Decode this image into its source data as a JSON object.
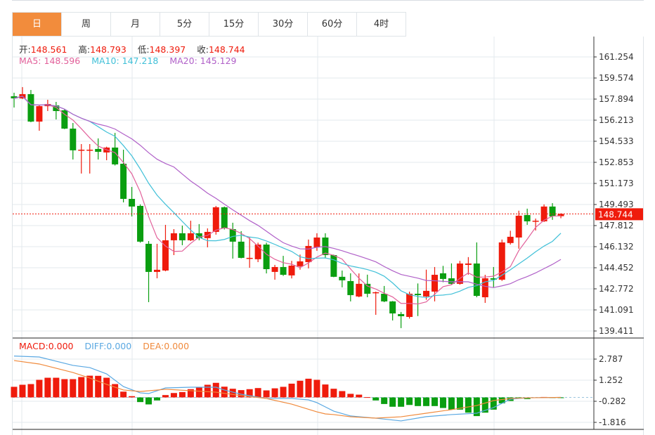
{
  "tabs": [
    {
      "label": "日",
      "active": true
    },
    {
      "label": "周"
    },
    {
      "label": "月"
    },
    {
      "label": "5分"
    },
    {
      "label": "15分"
    },
    {
      "label": "30分"
    },
    {
      "label": "60分"
    },
    {
      "label": "4时"
    }
  ],
  "ohlc_legend": {
    "open_label": "开:",
    "open": "148.561",
    "high_label": "高:",
    "high": "148.793",
    "low_label": "低:",
    "low": "148.397",
    "close_label": "收:",
    "close": "148.744"
  },
  "ma_legend": {
    "ma5_label": "MA5:",
    "ma5": "148.596",
    "ma10_label": "MA10:",
    "ma10": "147.218",
    "ma20_label": "MA20:",
    "ma20": "145.129"
  },
  "macd_legend": {
    "macd_label": "MACD:",
    "macd": "0.000",
    "diff_label": "DIFF:",
    "diff": "0.000",
    "dea_label": "DEA:",
    "dea": "0.000"
  },
  "colors": {
    "up": "#ef1b0c",
    "down": "#0a9e10",
    "active_tab": "#f28c3c",
    "ma5": "#e2609a",
    "ma10": "#40c0d8",
    "ma20": "#b060c8",
    "diff": "#5aa8e2",
    "dea": "#f08a3c"
  },
  "chart_data": [
    {
      "type": "candlestick",
      "price_ticks": [
        "161.254",
        "159.574",
        "157.894",
        "156.213",
        "154.533",
        "152.853",
        "151.173",
        "149.493",
        "147.812",
        "146.132",
        "144.452",
        "142.772",
        "141.091",
        "139.411"
      ],
      "ylim": [
        139.411,
        161.254
      ],
      "last_price": "148.744",
      "candles": [
        [
          158.12,
          158.4,
          157.22,
          157.95
        ],
        [
          157.95,
          158.85,
          157.9,
          158.29
        ],
        [
          158.29,
          158.62,
          156.05,
          156.1
        ],
        [
          156.1,
          157.4,
          155.37,
          157.33
        ],
        [
          157.33,
          157.84,
          156.94,
          157.5
        ],
        [
          157.39,
          157.67,
          156.27,
          156.94
        ],
        [
          157.0,
          157.11,
          155.5,
          155.54
        ],
        [
          155.54,
          155.99,
          153.08,
          153.81
        ],
        [
          153.81,
          154.31,
          151.96,
          153.86
        ],
        [
          153.81,
          154.31,
          151.96,
          153.86
        ],
        [
          153.92,
          154.76,
          153.08,
          153.69
        ],
        [
          153.64,
          154.1,
          153.02,
          154.03
        ],
        [
          154.03,
          155.2,
          152.6,
          152.69
        ],
        [
          152.74,
          153.86,
          149.66,
          149.94
        ],
        [
          149.94,
          150.89,
          148.54,
          149.33
        ],
        [
          149.38,
          149.5,
          146.45,
          146.53
        ],
        [
          146.36,
          146.58,
          141.71,
          144.12
        ],
        [
          144.12,
          146.36,
          143.61,
          144.29
        ],
        [
          144.23,
          147.87,
          144.17,
          146.64
        ],
        [
          146.64,
          147.53,
          145.46,
          147.2
        ],
        [
          147.2,
          147.81,
          146.25,
          146.64
        ],
        [
          146.64,
          148.2,
          146.58,
          147.2
        ],
        [
          147.2,
          147.93,
          146.64,
          146.81
        ],
        [
          146.81,
          147.59,
          146.08,
          147.31
        ],
        [
          147.31,
          149.38,
          147.09,
          149.27
        ],
        [
          149.27,
          149.33,
          147.5,
          147.59
        ],
        [
          147.53,
          148.04,
          145.18,
          146.53
        ],
        [
          146.53,
          147.37,
          145.2,
          145.24
        ],
        [
          145.18,
          146.86,
          144.45,
          145.24
        ],
        [
          145.13,
          146.45,
          144.9,
          146.3
        ],
        [
          146.3,
          146.45,
          144.0,
          144.34
        ],
        [
          144.12,
          144.68,
          143.5,
          144.51
        ],
        [
          144.51,
          145.4,
          143.8,
          143.89
        ],
        [
          143.84,
          145.0,
          143.6,
          144.62
        ],
        [
          144.57,
          145.5,
          144.3,
          144.96
        ],
        [
          144.9,
          146.7,
          144.4,
          146.19
        ],
        [
          146.08,
          147.2,
          145.8,
          146.86
        ],
        [
          146.86,
          147.2,
          145.2,
          145.46
        ],
        [
          145.46,
          145.5,
          143.7,
          143.73
        ],
        [
          143.73,
          144.23,
          142.89,
          143.45
        ],
        [
          143.39,
          144.01,
          141.77,
          142.27
        ],
        [
          142.16,
          144.0,
          142.1,
          143.17
        ],
        [
          143.17,
          143.9,
          142.1,
          142.38
        ],
        [
          142.44,
          142.55,
          140.7,
          142.5
        ],
        [
          142.38,
          143.0,
          141.71,
          141.77
        ],
        [
          141.77,
          141.8,
          140.25,
          140.81
        ],
        [
          140.76,
          140.93,
          139.64,
          140.59
        ],
        [
          140.53,
          142.55,
          140.4,
          142.38
        ],
        [
          142.38,
          143.2,
          140.6,
          142.27
        ],
        [
          142.16,
          144.3,
          141.9,
          142.61
        ],
        [
          142.55,
          144.51,
          141.77,
          143.89
        ],
        [
          144.01,
          144.6,
          143.3,
          143.56
        ],
        [
          143.61,
          144.8,
          143.1,
          143.17
        ],
        [
          143.17,
          145.0,
          143.1,
          144.79
        ],
        [
          144.68,
          145.3,
          143.9,
          144.79
        ],
        [
          144.79,
          146.47,
          142.1,
          142.21
        ],
        [
          142.1,
          143.89,
          141.65,
          143.61
        ],
        [
          143.61,
          144.51,
          142.89,
          143.5
        ],
        [
          143.5,
          146.7,
          143.4,
          146.47
        ],
        [
          146.42,
          147.4,
          146.3,
          146.92
        ],
        [
          146.86,
          149.0,
          145.97,
          148.6
        ],
        [
          148.65,
          149.16,
          147.87,
          148.15
        ],
        [
          148.15,
          148.37,
          147.42,
          148.2
        ],
        [
          148.15,
          149.5,
          148.1,
          149.33
        ],
        [
          149.33,
          149.6,
          148.27,
          148.54
        ],
        [
          148.561,
          148.793,
          148.397,
          148.744
        ]
      ],
      "ma_periods": [
        5,
        10,
        20
      ]
    },
    {
      "type": "macd",
      "ticks": [
        "2.787",
        "1.252",
        "-0.282",
        "-1.816"
      ],
      "ylim": [
        -2.5,
        3.35
      ],
      "histogram": [
        0.77,
        0.92,
        0.97,
        1.28,
        1.43,
        1.43,
        1.33,
        1.33,
        1.48,
        1.58,
        1.57,
        1.43,
        0.97,
        0.42,
        0.09,
        -0.34,
        -0.51,
        -0.22,
        0.17,
        0.32,
        0.39,
        0.6,
        0.73,
        0.92,
        1.06,
        0.78,
        0.63,
        0.53,
        0.6,
        0.68,
        0.51,
        0.66,
        0.77,
        1.0,
        1.21,
        1.36,
        1.28,
        0.94,
        0.63,
        0.46,
        0.26,
        0.2,
        0.02,
        -0.22,
        -0.48,
        -0.68,
        -0.68,
        -0.55,
        -0.63,
        -0.63,
        -0.63,
        -0.77,
        -0.89,
        -0.89,
        -1.11,
        -1.36,
        -1.11,
        -0.89,
        -0.43,
        -0.26,
        -0.08,
        -0.12,
        -0.03,
        0.03,
        -0.02,
        -0.02
      ],
      "diff": [
        [
          1,
          3.01
        ],
        [
          4,
          2.94
        ],
        [
          8,
          2.33
        ],
        [
          10,
          2.17
        ],
        [
          12,
          1.71
        ],
        [
          14,
          0.79
        ],
        [
          16,
          0.33
        ],
        [
          17,
          0.28
        ],
        [
          19,
          0.69
        ],
        [
          22,
          0.74
        ],
        [
          25,
          0.74
        ],
        [
          26,
          0.54
        ],
        [
          28,
          0.23
        ],
        [
          31,
          -0.08
        ],
        [
          34,
          -0.08
        ],
        [
          36,
          -0.18
        ],
        [
          37,
          -0.38
        ],
        [
          38,
          -0.69
        ],
        [
          39,
          -1.0
        ],
        [
          41,
          -1.35
        ],
        [
          44,
          -1.51
        ],
        [
          47,
          -1.71
        ],
        [
          50,
          -1.4
        ],
        [
          53,
          -1.25
        ],
        [
          56,
          -1.15
        ],
        [
          58,
          -0.74
        ],
        [
          60,
          -0.13
        ],
        [
          62,
          -0.03
        ],
        [
          66,
          0.0
        ]
      ],
      "dea": [
        [
          1,
          2.68
        ],
        [
          4,
          2.43
        ],
        [
          8,
          1.81
        ],
        [
          10,
          1.41
        ],
        [
          12,
          0.95
        ],
        [
          14,
          0.54
        ],
        [
          16,
          0.43
        ],
        [
          19,
          0.59
        ],
        [
          22,
          0.49
        ],
        [
          25,
          0.38
        ],
        [
          28,
          0.13
        ],
        [
          31,
          -0.08
        ],
        [
          34,
          -0.49
        ],
        [
          37,
          -1.05
        ],
        [
          38,
          -1.2
        ],
        [
          39,
          -1.25
        ],
        [
          41,
          -1.41
        ],
        [
          44,
          -1.51
        ],
        [
          47,
          -1.41
        ],
        [
          50,
          -1.15
        ],
        [
          53,
          -0.89
        ],
        [
          56,
          -0.59
        ],
        [
          58,
          -0.23
        ],
        [
          60,
          -0.08
        ],
        [
          62,
          -0.03
        ],
        [
          66,
          0.0
        ]
      ]
    }
  ]
}
